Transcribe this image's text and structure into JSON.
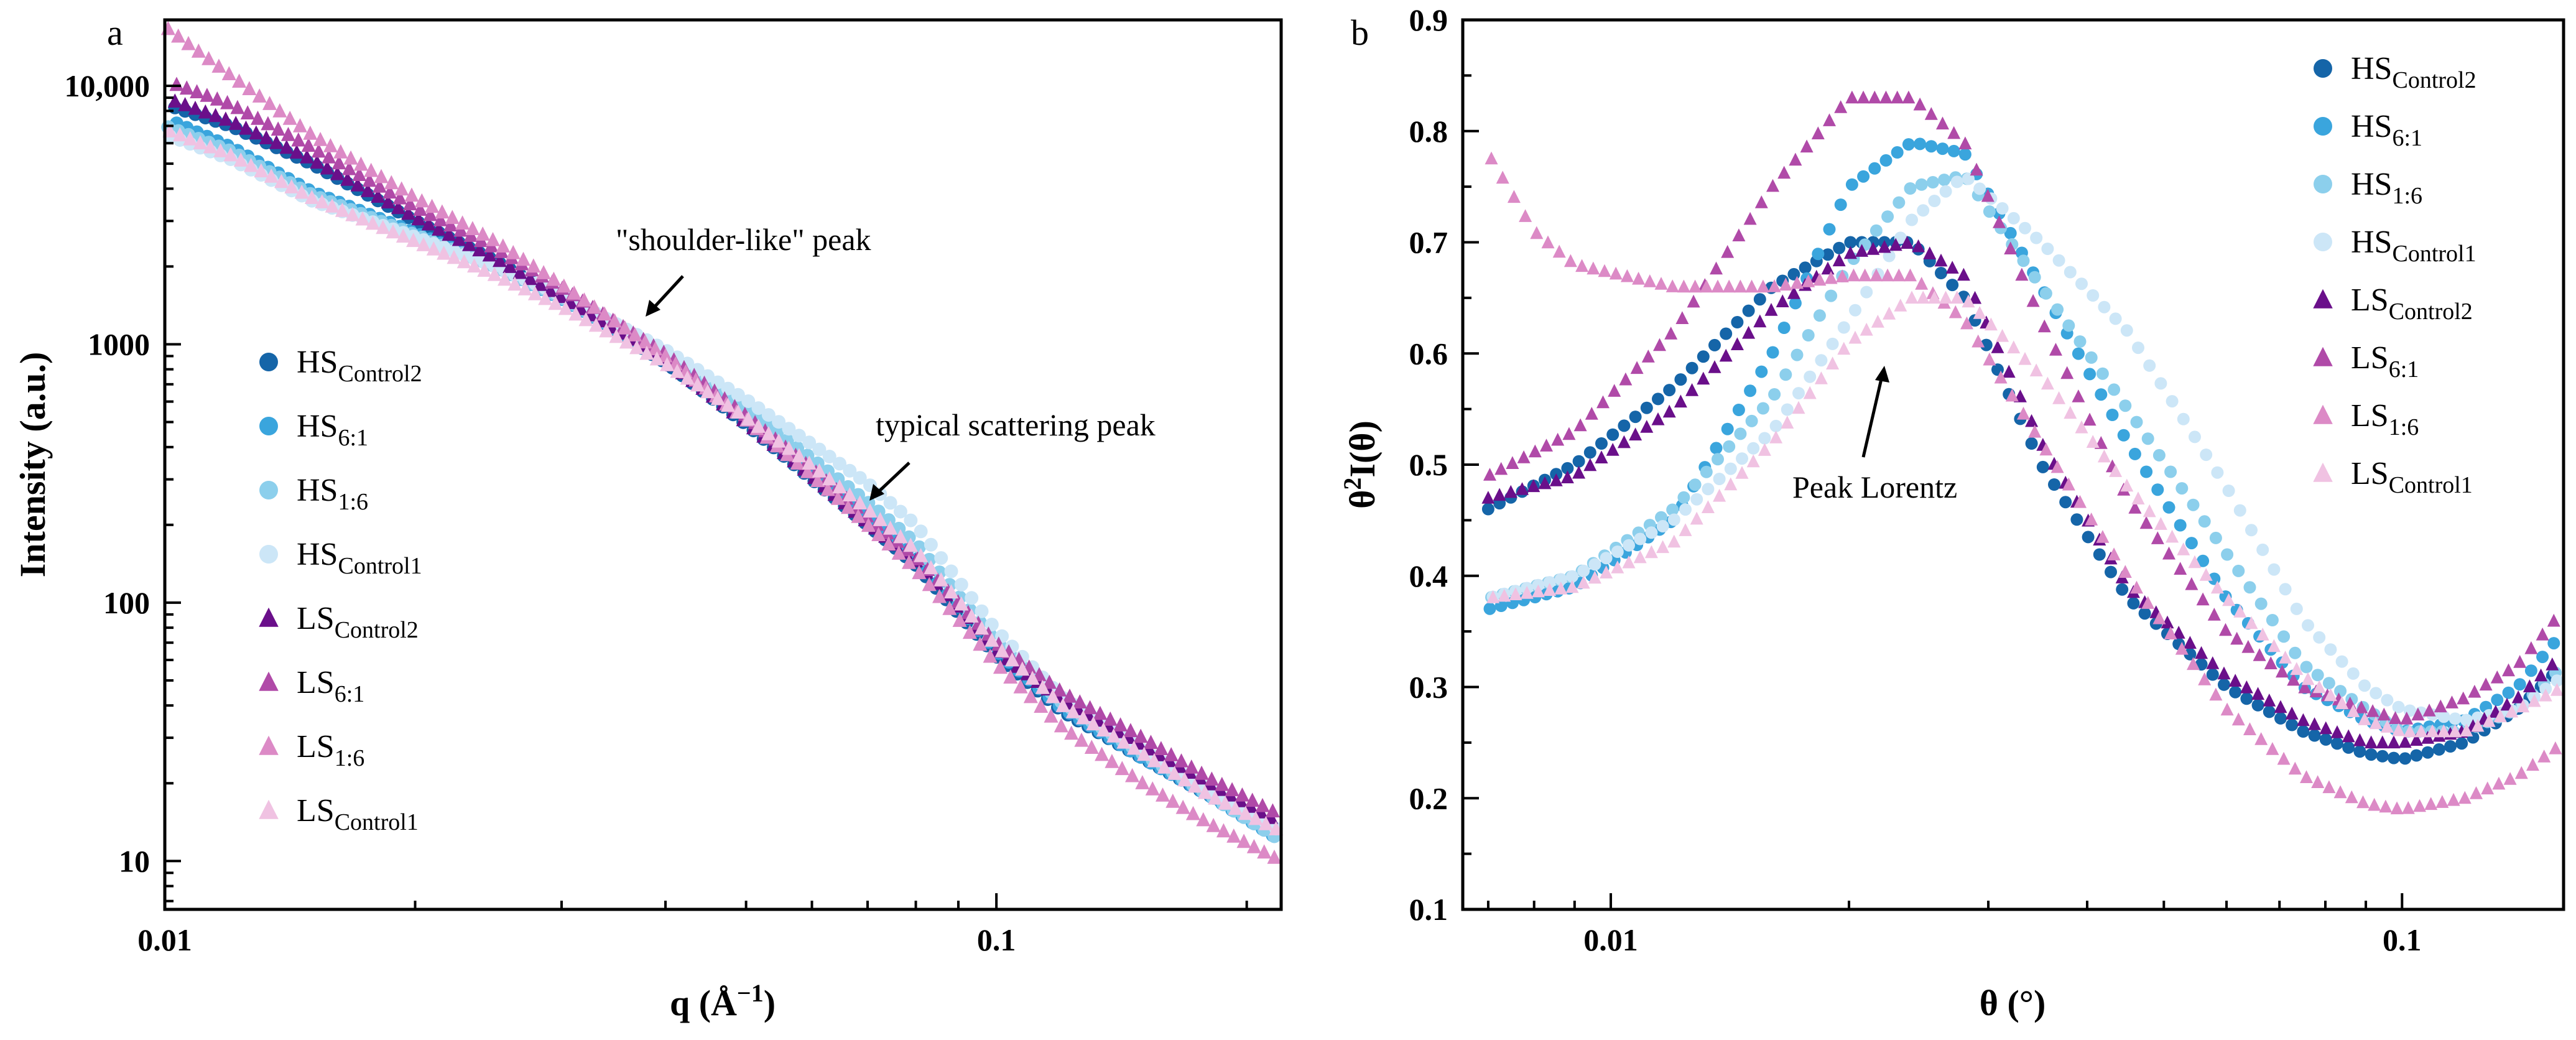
{
  "chart_data": [
    {
      "type": "scatter",
      "panel_label": "a",
      "xlabel": "q (Å",
      "xlabel_exp": "−1",
      "xlabel_close": ")",
      "ylabel": "Intensity (a.u.)",
      "xscale": "log",
      "yscale": "log",
      "xlim": [
        0.01,
        0.22
      ],
      "ylim": [
        6.5,
        18000
      ],
      "x_ticks": [
        {
          "v": 0.01,
          "label": "0.01"
        },
        {
          "v": 0.1,
          "label": "0.1"
        }
      ],
      "y_ticks": [
        {
          "v": 10,
          "label": "10"
        },
        {
          "v": 100,
          "label": "100"
        },
        {
          "v": 1000,
          "label": "1000"
        },
        {
          "v": 10000,
          "label": "10,000"
        }
      ],
      "legend_position": "left-middle",
      "annotations": [
        {
          "text": "\"shoulder-like\" peak",
          "points_to_q": 0.039
        },
        {
          "text": "typical scattering peak",
          "points_to_q": 0.085
        }
      ],
      "series": [
        {
          "name": "HS",
          "sub": "Control2",
          "marker": "circle",
          "color": "#1565a8",
          "q": [
            0.01,
            0.012,
            0.015,
            0.02,
            0.025,
            0.03,
            0.04,
            0.05,
            0.06,
            0.07,
            0.08,
            0.1,
            0.12,
            0.15,
            0.18,
            0.22
          ],
          "I": [
            8500,
            7000,
            5000,
            3000,
            2100,
            1500,
            850,
            490,
            300,
            200,
            140,
            62,
            38,
            25,
            18,
            13
          ]
        },
        {
          "name": "HS",
          "sub": "6:1",
          "marker": "circle",
          "color": "#3aa5dd",
          "q": [
            0.01,
            0.012,
            0.015,
            0.02,
            0.025,
            0.03,
            0.04,
            0.05,
            0.06,
            0.07,
            0.08,
            0.1,
            0.12,
            0.15,
            0.18,
            0.22
          ],
          "I": [
            7500,
            5800,
            3900,
            2700,
            2000,
            1500,
            880,
            530,
            330,
            220,
            150,
            65,
            39,
            25,
            18,
            12
          ]
        },
        {
          "name": "HS",
          "sub": "1:6",
          "marker": "circle",
          "color": "#8ccfec",
          "q": [
            0.01,
            0.012,
            0.015,
            0.02,
            0.025,
            0.03,
            0.04,
            0.05,
            0.06,
            0.07,
            0.08,
            0.1,
            0.12,
            0.15,
            0.18,
            0.22
          ],
          "I": [
            7000,
            5600,
            3800,
            2650,
            2000,
            1520,
            900,
            560,
            360,
            245,
            170,
            70,
            41,
            26,
            18,
            12
          ]
        },
        {
          "name": "HS",
          "sub": "Control1",
          "marker": "circle",
          "color": "#cce6f7",
          "q": [
            0.01,
            0.012,
            0.015,
            0.02,
            0.025,
            0.03,
            0.04,
            0.05,
            0.06,
            0.07,
            0.08,
            0.1,
            0.12,
            0.15,
            0.18,
            0.22
          ],
          "I": [
            6500,
            5200,
            3600,
            2600,
            2000,
            1550,
            950,
            610,
            410,
            290,
            200,
            78,
            43,
            27,
            19,
            13
          ]
        },
        {
          "name": "LS",
          "sub": "Control2",
          "marker": "triangle",
          "color": "#6a0f8a",
          "q": [
            0.01,
            0.012,
            0.015,
            0.02,
            0.025,
            0.03,
            0.04,
            0.05,
            0.06,
            0.07,
            0.08,
            0.1,
            0.12,
            0.15,
            0.18,
            0.22
          ],
          "I": [
            9000,
            7300,
            5200,
            3100,
            2150,
            1520,
            870,
            500,
            310,
            205,
            145,
            65,
            42,
            28,
            20,
            14
          ]
        },
        {
          "name": "LS",
          "sub": "6:1",
          "marker": "triangle",
          "color": "#b04aa8",
          "q": [
            0.01,
            0.012,
            0.015,
            0.02,
            0.025,
            0.03,
            0.04,
            0.05,
            0.06,
            0.07,
            0.08,
            0.1,
            0.12,
            0.15,
            0.18,
            0.22
          ],
          "I": [
            10500,
            8500,
            5800,
            3400,
            2350,
            1650,
            920,
            530,
            330,
            215,
            150,
            70,
            45,
            30,
            21,
            15
          ]
        },
        {
          "name": "LS",
          "sub": "1:6",
          "marker": "triangle",
          "color": "#dc8ac6",
          "q": [
            0.01,
            0.012,
            0.015,
            0.02,
            0.025,
            0.03,
            0.04,
            0.05,
            0.06,
            0.07,
            0.08,
            0.1,
            0.12,
            0.15,
            0.18,
            0.22
          ],
          "I": [
            17000,
            11000,
            6500,
            3700,
            2500,
            1700,
            900,
            510,
            310,
            200,
            135,
            58,
            33,
            20,
            14,
            10
          ]
        },
        {
          "name": "LS",
          "sub": "Control1",
          "marker": "triangle",
          "color": "#f0c2e2",
          "q": [
            0.01,
            0.012,
            0.015,
            0.02,
            0.025,
            0.03,
            0.04,
            0.05,
            0.06,
            0.07,
            0.08,
            0.1,
            0.12,
            0.15,
            0.18,
            0.22
          ],
          "I": [
            6800,
            5400,
            3700,
            2500,
            1850,
            1400,
            840,
            520,
            340,
            230,
            160,
            68,
            40,
            26,
            18,
            13
          ]
        }
      ]
    },
    {
      "type": "scatter",
      "panel_label": "b",
      "xlabel": "θ (°)",
      "ylabel_base": "θ",
      "ylabel_exp": "2",
      "ylabel_rest": "I(θ)",
      "xscale": "log",
      "yscale": "linear",
      "xlim": [
        0.0065,
        0.16
      ],
      "ylim": [
        0.1,
        0.9
      ],
      "x_ticks": [
        {
          "v": 0.01,
          "label": "0.01"
        },
        {
          "v": 0.1,
          "label": "0.1"
        }
      ],
      "y_ticks": [
        {
          "v": 0.1,
          "label": "0.1"
        },
        {
          "v": 0.2,
          "label": "0.2"
        },
        {
          "v": 0.3,
          "label": "0.3"
        },
        {
          "v": 0.4,
          "label": "0.4"
        },
        {
          "v": 0.5,
          "label": "0.5"
        },
        {
          "v": 0.6,
          "label": "0.6"
        },
        {
          "v": 0.7,
          "label": "0.7"
        },
        {
          "v": 0.8,
          "label": "0.8"
        },
        {
          "v": 0.9,
          "label": "0.9"
        }
      ],
      "legend_position": "top-right",
      "annotations": [
        {
          "text": "Peak Lorentz",
          "points_to_x": 0.022,
          "points_to_y": 0.6
        }
      ],
      "series": [
        {
          "name": "HS",
          "sub": "Control2",
          "marker": "circle",
          "color": "#1565a8",
          "x": [
            0.007,
            0.009,
            0.012,
            0.016,
            0.02,
            0.024,
            0.028,
            0.035,
            0.045,
            0.06,
            0.075,
            0.09,
            0.1,
            0.12,
            0.14,
            0.16
          ],
          "y": [
            0.46,
            0.5,
            0.57,
            0.66,
            0.7,
            0.7,
            0.65,
            0.5,
            0.38,
            0.3,
            0.26,
            0.24,
            0.235,
            0.25,
            0.28,
            0.32
          ]
        },
        {
          "name": "HS",
          "sub": "6:1",
          "marker": "circle",
          "color": "#3aa5dd",
          "x": [
            0.007,
            0.009,
            0.012,
            0.016,
            0.02,
            0.024,
            0.028,
            0.035,
            0.045,
            0.06,
            0.075,
            0.09,
            0.1,
            0.12,
            0.14,
            0.16
          ],
          "y": [
            0.37,
            0.39,
            0.45,
            0.6,
            0.75,
            0.79,
            0.78,
            0.66,
            0.52,
            0.38,
            0.3,
            0.27,
            0.26,
            0.27,
            0.3,
            0.35
          ]
        },
        {
          "name": "HS",
          "sub": "1:6",
          "marker": "circle",
          "color": "#8ccfec",
          "x": [
            0.007,
            0.009,
            0.012,
            0.016,
            0.02,
            0.024,
            0.028,
            0.035,
            0.045,
            0.06,
            0.075,
            0.09,
            0.1,
            0.12,
            0.14,
            0.16
          ],
          "y": [
            0.38,
            0.4,
            0.46,
            0.56,
            0.68,
            0.75,
            0.76,
            0.66,
            0.55,
            0.42,
            0.32,
            0.28,
            0.26,
            0.26,
            0.28,
            0.32
          ]
        },
        {
          "name": "HS",
          "sub": "Control1",
          "marker": "circle",
          "color": "#cce6f7",
          "x": [
            0.007,
            0.009,
            0.012,
            0.016,
            0.02,
            0.024,
            0.028,
            0.035,
            0.045,
            0.06,
            0.075,
            0.09,
            0.1,
            0.12,
            0.14,
            0.16
          ],
          "y": [
            0.38,
            0.4,
            0.45,
            0.53,
            0.63,
            0.72,
            0.76,
            0.7,
            0.62,
            0.48,
            0.36,
            0.3,
            0.28,
            0.27,
            0.28,
            0.31
          ]
        },
        {
          "name": "LS",
          "sub": "Control2",
          "marker": "triangle",
          "color": "#6a0f8a",
          "x": [
            0.007,
            0.009,
            0.012,
            0.016,
            0.02,
            0.024,
            0.028,
            0.035,
            0.045,
            0.06,
            0.075,
            0.09,
            0.1,
            0.12,
            0.14,
            0.16
          ],
          "y": [
            0.47,
            0.49,
            0.55,
            0.64,
            0.69,
            0.7,
            0.67,
            0.52,
            0.39,
            0.31,
            0.27,
            0.25,
            0.25,
            0.26,
            0.29,
            0.33
          ]
        },
        {
          "name": "LS",
          "sub": "6:1",
          "marker": "triangle",
          "color": "#b04aa8",
          "x": [
            0.007,
            0.009,
            0.012,
            0.016,
            0.02,
            0.024,
            0.028,
            0.035,
            0.045,
            0.06,
            0.075,
            0.09,
            0.1,
            0.12,
            0.14,
            0.16
          ],
          "y": [
            0.49,
            0.53,
            0.62,
            0.75,
            0.83,
            0.83,
            0.79,
            0.63,
            0.47,
            0.35,
            0.3,
            0.28,
            0.27,
            0.29,
            0.32,
            0.37
          ]
        },
        {
          "name": "LS",
          "sub": "1:6",
          "marker": "triangle",
          "color": "#dc8ac6",
          "x": [
            0.007,
            0.008,
            0.009,
            0.012,
            0.016,
            0.02,
            0.024,
            0.028,
            0.035,
            0.045,
            0.06,
            0.075,
            0.09,
            0.1,
            0.12,
            0.14,
            0.16
          ],
          "y": [
            0.78,
            0.71,
            0.68,
            0.66,
            0.66,
            0.67,
            0.67,
            0.63,
            0.52,
            0.4,
            0.28,
            0.22,
            0.195,
            0.19,
            0.2,
            0.22,
            0.25
          ]
        },
        {
          "name": "LS",
          "sub": "Control1",
          "marker": "triangle",
          "color": "#f0c2e2",
          "x": [
            0.007,
            0.009,
            0.012,
            0.016,
            0.02,
            0.024,
            0.028,
            0.035,
            0.045,
            0.06,
            0.075,
            0.09,
            0.1,
            0.12,
            0.14,
            0.16
          ],
          "y": [
            0.38,
            0.39,
            0.43,
            0.52,
            0.61,
            0.65,
            0.65,
            0.58,
            0.48,
            0.38,
            0.31,
            0.27,
            0.26,
            0.26,
            0.28,
            0.3
          ]
        }
      ]
    }
  ]
}
